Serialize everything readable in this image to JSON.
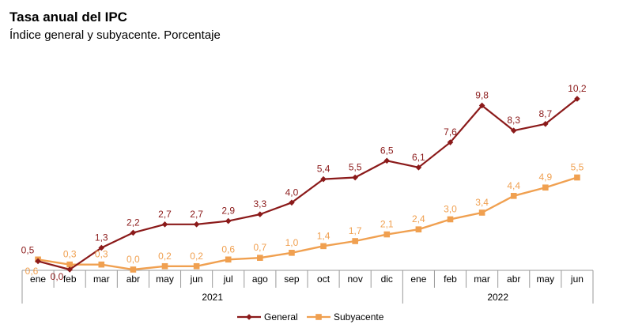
{
  "chart_data": {
    "type": "line",
    "title": "Tasa anual del IPC",
    "subtitle": "Índice general y subyacente. Porcentaje",
    "categories": [
      "ene",
      "feb",
      "mar",
      "abr",
      "may",
      "jun",
      "jul",
      "ago",
      "sep",
      "oct",
      "nov",
      "dic",
      "ene",
      "feb",
      "mar",
      "abr",
      "may",
      "jun"
    ],
    "year_groups": [
      {
        "label": "2021",
        "start": 0,
        "end": 11
      },
      {
        "label": "2022",
        "start": 12,
        "end": 17
      }
    ],
    "series": [
      {
        "name": "General",
        "color": "#8B1A1A",
        "values": [
          0.5,
          0.0,
          1.3,
          2.2,
          2.7,
          2.7,
          2.9,
          3.3,
          4.0,
          5.4,
          5.5,
          6.5,
          6.1,
          7.6,
          9.8,
          8.3,
          8.7,
          10.2
        ],
        "labels": [
          "0,5",
          "0,0",
          "1,3",
          "2,2",
          "2,7",
          "2,7",
          "2,9",
          "3,3",
          "4,0",
          "5,4",
          "5,5",
          "6,5",
          "6,1",
          "7,6",
          "9,8",
          "8,3",
          "8,7",
          "10,2"
        ]
      },
      {
        "name": "Subyacente",
        "color": "#F0A050",
        "values": [
          0.6,
          0.3,
          0.3,
          0.0,
          0.2,
          0.2,
          0.6,
          0.7,
          1.0,
          1.4,
          1.7,
          2.1,
          2.4,
          3.0,
          3.4,
          4.4,
          4.9,
          5.5
        ],
        "labels": [
          "0,6",
          "0,3",
          "0,3",
          "0,0",
          "0,2",
          "0,2",
          "0,6",
          "0,7",
          "1,0",
          "1,4",
          "1,7",
          "2,1",
          "2,4",
          "3,0",
          "3,4",
          "4,4",
          "4,9",
          "5,5"
        ]
      }
    ],
    "ylim": [
      0,
      10.2
    ],
    "legend": "bottom-center",
    "grid": false
  }
}
